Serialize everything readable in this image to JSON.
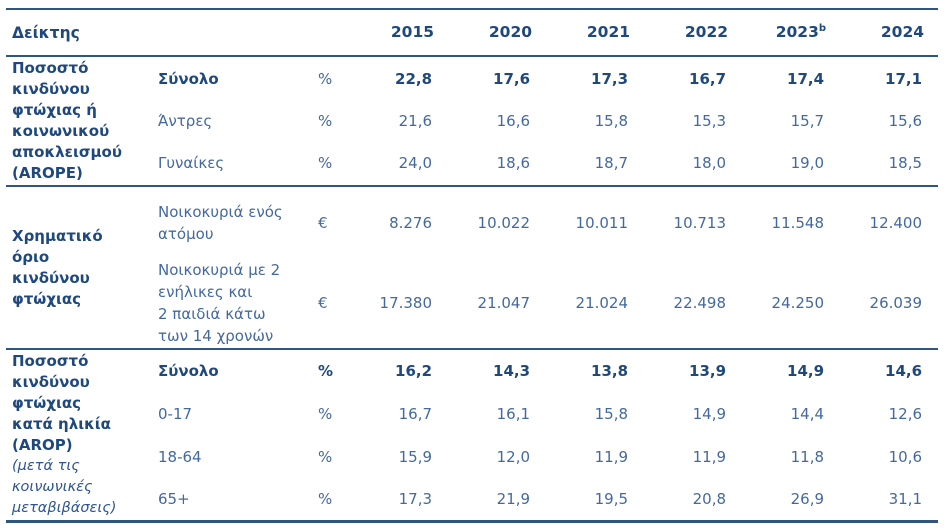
{
  "header": {
    "indicator_label": "Δείκτης",
    "years": [
      {
        "label": "2015",
        "sup": ""
      },
      {
        "label": "2020",
        "sup": ""
      },
      {
        "label": "2021",
        "sup": ""
      },
      {
        "label": "2022",
        "sup": ""
      },
      {
        "label": "2023",
        "sup": "b"
      },
      {
        "label": "2024",
        "sup": ""
      }
    ]
  },
  "colors": {
    "heading_text": "#1F497D",
    "value_text": "#44699E",
    "rule_lines": "#31567E"
  },
  "sections": [
    {
      "title": "Ποσοστό\nκινδύνου\nφτώχιας ή\nκοινωνικού\nαποκλεισμού\n(AROPE)",
      "rows": [
        {
          "label": "Σύνολο",
          "unit": "%",
          "values": [
            "22,8",
            "17,6",
            "17,3",
            "16,7",
            "17,4",
            "17,1"
          ]
        },
        {
          "label": "Άντρες",
          "unit": "%",
          "values": [
            "21,6",
            "16,6",
            "15,8",
            "15,3",
            "15,7",
            "15,6"
          ]
        },
        {
          "label": "Γυναίκες",
          "unit": "%",
          "values": [
            "24,0",
            "18,6",
            "18,7",
            "18,0",
            "19,0",
            "18,5"
          ]
        }
      ]
    },
    {
      "title": "Χρηματικό\nόριο\nκινδύνου\nφτώχιας",
      "rows": [
        {
          "label": "Νοικοκυριά ενός\nατόμου",
          "unit": "€",
          "values": [
            "8.276",
            "10.022",
            "10.011",
            "10.713",
            "11.548",
            "12.400"
          ]
        },
        {
          "label": "Νοικοκυριά με 2\nενήλικες και\n2 παιδιά κάτω\nτων 14 χρονών",
          "unit": "€",
          "values": [
            "17.380",
            "21.047",
            "21.024",
            "22.498",
            "24.250",
            "26.039"
          ]
        }
      ]
    },
    {
      "title": "Ποσοστό\nκινδύνου\nφτώχιας\nκατά ηλικία\n(AROP)",
      "subtitle": "(μετά τις\nκοινωνικές\nμεταβιβάσεις)",
      "rows": [
        {
          "label": "Σύνολο",
          "unit": "%",
          "values": [
            "16,2",
            "14,3",
            "13,8",
            "13,9",
            "14,9",
            "14,6"
          ]
        },
        {
          "label": "0-17",
          "unit": "%",
          "values": [
            "16,7",
            "16,1",
            "15,8",
            "14,9",
            "14,4",
            "12,6"
          ]
        },
        {
          "label": "18-64",
          "unit": "%",
          "values": [
            "15,9",
            "12,0",
            "11,9",
            "11,9",
            "11,8",
            "10,6"
          ]
        },
        {
          "label": "65+",
          "unit": "%",
          "values": [
            "17,3",
            "21,9",
            "19,5",
            "20,8",
            "26,9",
            "31,1"
          ]
        }
      ]
    }
  ]
}
